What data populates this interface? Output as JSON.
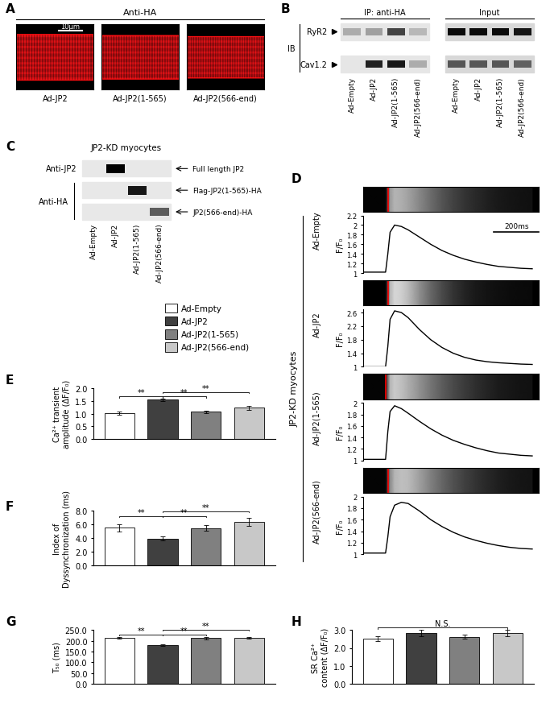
{
  "panel_a": {
    "panel": "A",
    "title": "Anti-HA",
    "scale_bar": "10μm",
    "images": [
      "Ad-JP2",
      "Ad-JP2(1-565)",
      "Ad-JP2(566-end)"
    ]
  },
  "panel_b": {
    "panel": "B",
    "sections": [
      "IP: anti-HA",
      "Input"
    ],
    "rows": [
      "RyR2",
      "Cav1.2"
    ],
    "row_group": "IB",
    "lanes": [
      "Ad-Empty",
      "Ad-JP2",
      "Ad-JP2(1-565)",
      "Ad-JP2(566-end)",
      "Ad-Empty",
      "Ad-JP2",
      "Ad-JP2(1-565)",
      "Ad-JP2(566-end)"
    ]
  },
  "panel_c": {
    "panel": "C",
    "title": "JP2-KD myocytes",
    "rows": [
      "Anti-JP2",
      "Anti-HA"
    ],
    "bands": [
      "Full length JP2",
      "Flag-JP2(1-565)-HA",
      "JP2(566-end)-HA"
    ],
    "lanes": [
      "Ad-Empty",
      "Ad-JP2",
      "Ad-JP2(1-565)",
      "Ad-JP2(566-end)"
    ]
  },
  "panel_d": {
    "panel": "D",
    "title": "JP2-KD myocytes",
    "scale_bar": {
      "value": 200,
      "label": "200ms"
    }
  },
  "legend_entries": [
    {
      "name": "Ad-Empty",
      "color": "#ffffff"
    },
    {
      "name": "Ad-JP2",
      "color": "#404040"
    },
    {
      "name": "Ad-JP2(1-565)",
      "color": "#808080"
    },
    {
      "name": "Ad-JP2(566-end)",
      "color": "#c8c8c8"
    }
  ],
  "chart_data": [
    {
      "panel": "D",
      "type": "line",
      "title": "Ad-Empty",
      "ylabel": "F/F₀",
      "color": "#000000",
      "x": [
        0,
        100,
        110,
        120,
        140,
        170,
        200,
        250,
        300,
        350,
        400,
        450,
        500,
        550,
        600,
        650,
        700,
        750
      ],
      "values": [
        1.02,
        1.02,
        1.4,
        1.85,
        2.0,
        1.97,
        1.9,
        1.75,
        1.6,
        1.47,
        1.37,
        1.29,
        1.23,
        1.18,
        1.14,
        1.12,
        1.1,
        1.09
      ],
      "xlim": [
        0,
        780
      ],
      "ylim": [
        1,
        2.2
      ],
      "yticks": [
        1,
        1.2,
        1.4,
        1.6,
        1.8,
        2,
        2.2
      ],
      "tick_labels": "y"
    },
    {
      "panel": "D",
      "type": "line",
      "title": "Ad-JP2",
      "ylabel": "F/F₀",
      "color": "#000000",
      "x": [
        0,
        100,
        110,
        120,
        140,
        170,
        200,
        250,
        300,
        350,
        400,
        450,
        500,
        550,
        600,
        650,
        700,
        750
      ],
      "values": [
        1.0,
        1.0,
        1.6,
        2.4,
        2.65,
        2.6,
        2.45,
        2.1,
        1.8,
        1.57,
        1.4,
        1.28,
        1.2,
        1.15,
        1.12,
        1.1,
        1.08,
        1.07
      ],
      "xlim": [
        0,
        780
      ],
      "ylim": [
        1,
        2.7
      ],
      "yticks": [
        1,
        1.4,
        1.8,
        2.2,
        2.6
      ],
      "tick_labels": "y"
    },
    {
      "panel": "D",
      "type": "line",
      "title": "Ad-JP2(1-565)",
      "ylabel": "F/F₀",
      "color": "#000000",
      "x": [
        0,
        100,
        110,
        120,
        140,
        170,
        200,
        250,
        300,
        350,
        400,
        450,
        500,
        550,
        600,
        650,
        700,
        750
      ],
      "values": [
        1.02,
        1.02,
        1.5,
        1.85,
        1.95,
        1.9,
        1.82,
        1.68,
        1.55,
        1.44,
        1.35,
        1.28,
        1.22,
        1.17,
        1.13,
        1.11,
        1.09,
        1.08
      ],
      "xlim": [
        0,
        780
      ],
      "ylim": [
        1,
        2
      ],
      "yticks": [
        1,
        1.2,
        1.4,
        1.6,
        1.8,
        2
      ],
      "tick_labels": "y"
    },
    {
      "panel": "D",
      "type": "line",
      "title": "Ad-JP2(566-end)",
      "ylabel": "F/F₀",
      "color": "#000000",
      "x": [
        0,
        100,
        110,
        120,
        140,
        170,
        200,
        250,
        300,
        350,
        400,
        450,
        500,
        550,
        600,
        650,
        700,
        750
      ],
      "values": [
        1.02,
        1.02,
        1.3,
        1.65,
        1.85,
        1.9,
        1.88,
        1.75,
        1.6,
        1.48,
        1.38,
        1.3,
        1.24,
        1.19,
        1.15,
        1.12,
        1.1,
        1.09
      ],
      "xlim": [
        0,
        780
      ],
      "ylim": [
        1,
        2
      ],
      "yticks": [
        1,
        1.2,
        1.4,
        1.6,
        1.8,
        2
      ],
      "tick_labels": "y"
    },
    {
      "panel": "E",
      "type": "bar",
      "ylabel": "Ca²⁺ transient\namplitude (ΔF/F₀)",
      "categories": [
        "Ad-Empty",
        "Ad-JP2",
        "Ad-JP2(1-565)",
        "Ad-JP2(566-end)"
      ],
      "values": [
        1.02,
        1.55,
        1.07,
        1.23
      ],
      "errors": [
        0.05,
        0.05,
        0.05,
        0.08
      ],
      "colors": [
        "#ffffff",
        "#404040",
        "#808080",
        "#c8c8c8"
      ],
      "ylim": [
        0,
        2.0
      ],
      "yticks": [
        {
          "value": 0,
          "label": "0.0"
        },
        {
          "value": 0.5,
          "label": "0.5"
        },
        {
          "value": 1.0,
          "label": "1.0"
        },
        {
          "value": 1.5,
          "label": "1.5"
        },
        {
          "value": 2.0,
          "label": "2.0"
        }
      ],
      "tick_labels": "y",
      "annotations": [
        {
          "between": [
            "Ad-Empty",
            "Ad-JP2"
          ],
          "label": "**"
        },
        {
          "between": [
            "Ad-JP2",
            "Ad-JP2(1-565)"
          ],
          "label": "**"
        },
        {
          "between": [
            "Ad-JP2",
            "Ad-JP2(566-end)"
          ],
          "label": "**"
        }
      ]
    },
    {
      "panel": "F",
      "type": "bar",
      "ylabel": "Index of\nDyssynchronization (ms)",
      "categories": [
        "Ad-Empty",
        "Ad-JP2",
        "Ad-JP2(1-565)",
        "Ad-JP2(566-end)"
      ],
      "values": [
        5.5,
        3.9,
        5.45,
        6.35
      ],
      "errors": [
        0.5,
        0.3,
        0.4,
        0.6
      ],
      "colors": [
        "#ffffff",
        "#404040",
        "#808080",
        "#c8c8c8"
      ],
      "ylim": [
        0,
        8.0
      ],
      "yticks": [
        {
          "value": 0,
          "label": "0.0"
        },
        {
          "value": 2,
          "label": "2.0"
        },
        {
          "value": 4,
          "label": "4.0"
        },
        {
          "value": 6,
          "label": "6.0"
        },
        {
          "value": 8,
          "label": "8.0"
        }
      ],
      "tick_labels": "y",
      "annotations": [
        {
          "between": [
            "Ad-Empty",
            "Ad-JP2"
          ],
          "label": "**"
        },
        {
          "between": [
            "Ad-JP2",
            "Ad-JP2(1-565)"
          ],
          "label": "**"
        },
        {
          "between": [
            "Ad-JP2",
            "Ad-JP2(566-end)"
          ],
          "label": "**"
        }
      ]
    },
    {
      "panel": "G",
      "type": "bar",
      "ylabel": "T₅₀ (ms)",
      "categories": [
        "Ad-Empty",
        "Ad-JP2",
        "Ad-JP2(1-565)",
        "Ad-JP2(566-end)"
      ],
      "values": [
        212,
        180,
        212,
        213
      ],
      "errors": [
        4,
        3,
        5,
        5
      ],
      "colors": [
        "#ffffff",
        "#404040",
        "#808080",
        "#c8c8c8"
      ],
      "ylim": [
        0,
        250.0
      ],
      "yticks": [
        {
          "value": 0,
          "label": "0.0"
        },
        {
          "value": 50,
          "label": "50.0"
        },
        {
          "value": 100,
          "label": "100.0"
        },
        {
          "value": 150,
          "label": "150.0"
        },
        {
          "value": 200,
          "label": "200.0"
        },
        {
          "value": 250,
          "label": "250.0"
        }
      ],
      "tick_labels": "y",
      "annotations": [
        {
          "between": [
            "Ad-Empty",
            "Ad-JP2"
          ],
          "label": "**"
        },
        {
          "between": [
            "Ad-JP2",
            "Ad-JP2(1-565)"
          ],
          "label": "**"
        },
        {
          "between": [
            "Ad-JP2",
            "Ad-JP2(566-end)"
          ],
          "label": "**"
        }
      ]
    },
    {
      "panel": "H",
      "type": "bar",
      "ylabel": "SR Ca²⁺\ncontent (ΔF/F₀)",
      "categories": [
        "Ad-Empty",
        "Ad-JP2",
        "Ad-JP2(1-565)",
        "Ad-JP2(566-end)"
      ],
      "values": [
        2.52,
        2.82,
        2.62,
        2.82
      ],
      "errors": [
        0.13,
        0.18,
        0.12,
        0.18
      ],
      "colors": [
        "#ffffff",
        "#404040",
        "#808080",
        "#c8c8c8"
      ],
      "ylim": [
        0,
        3.0
      ],
      "yticks": [
        {
          "value": 0,
          "label": "0.0"
        },
        {
          "value": 1,
          "label": "1.0"
        },
        {
          "value": 2,
          "label": "2.0"
        },
        {
          "value": 3,
          "label": "3.0"
        }
      ],
      "tick_labels": "y",
      "annotations": [
        {
          "between": [
            "Ad-Empty",
            "Ad-JP2(566-end)"
          ],
          "label": "N.S."
        }
      ]
    }
  ]
}
